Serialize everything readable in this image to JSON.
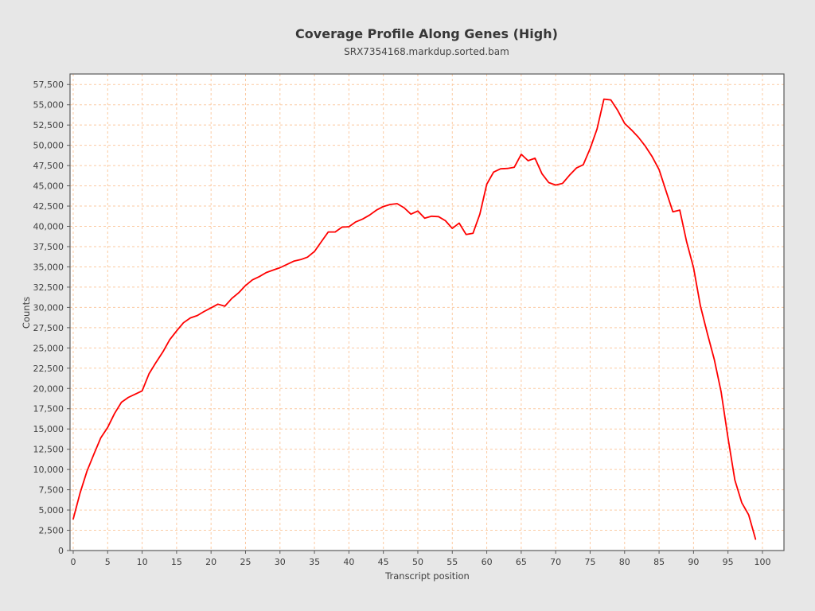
{
  "chart_data": {
    "type": "line",
    "title": "Coverage Profile Along Genes (High)",
    "subtitle": "SRX7354168.markdup.sorted.bam",
    "xlabel": "Transcript position",
    "ylabel": "Counts",
    "grid": true,
    "legend": "none",
    "xlim": [
      -0.46,
      103.12
    ],
    "ylim": [
      0,
      58800
    ],
    "x_ticks": [
      0,
      5,
      10,
      15,
      20,
      25,
      30,
      35,
      40,
      45,
      50,
      55,
      60,
      65,
      70,
      75,
      80,
      85,
      90,
      95,
      100
    ],
    "y_ticks": [
      0,
      2500,
      5000,
      7500,
      10000,
      12500,
      15000,
      17500,
      20000,
      22500,
      25000,
      27500,
      30000,
      32500,
      35000,
      37500,
      40000,
      42500,
      45000,
      47500,
      50000,
      52500,
      55000,
      57500
    ],
    "series": [
      {
        "name": "coverage",
        "color": "#ff0000",
        "x": [
          0,
          1,
          2,
          3,
          4,
          5,
          6,
          7,
          8,
          9,
          10,
          11,
          12,
          13,
          14,
          15,
          16,
          17,
          18,
          19,
          20,
          21,
          22,
          23,
          24,
          25,
          26,
          27,
          28,
          29,
          30,
          31,
          32,
          33,
          34,
          35,
          36,
          37,
          38,
          39,
          40,
          41,
          42,
          43,
          44,
          45,
          46,
          47,
          48,
          49,
          50,
          51,
          52,
          53,
          54,
          55,
          56,
          57,
          58,
          59,
          60,
          61,
          62,
          63,
          64,
          65,
          66,
          67,
          68,
          69,
          70,
          71,
          72,
          73,
          74,
          75,
          76,
          77,
          78,
          79,
          80,
          81,
          82,
          83,
          84,
          85,
          86,
          87,
          88,
          89,
          90,
          91,
          92,
          93,
          94,
          95,
          96,
          97,
          98,
          99
        ],
        "values": [
          3900,
          7100,
          9800,
          11900,
          13900,
          15200,
          16900,
          18300,
          18900,
          19300,
          19700,
          21800,
          23200,
          24500,
          26000,
          27100,
          28100,
          28700,
          29000,
          29500,
          29950,
          30400,
          30150,
          31100,
          31800,
          32700,
          33400,
          33800,
          34300,
          34600,
          34900,
          35300,
          35700,
          35900,
          36200,
          36900,
          38100,
          39300,
          39300,
          39900,
          39950,
          40550,
          40900,
          41400,
          42000,
          42450,
          42700,
          42800,
          42300,
          41500,
          41900,
          41000,
          41250,
          41200,
          40700,
          39750,
          40400,
          39000,
          39150,
          41500,
          45200,
          46700,
          47100,
          47150,
          47300,
          48900,
          48100,
          48400,
          46500,
          45400,
          45100,
          45300,
          46300,
          47200,
          47600,
          49600,
          52000,
          55700,
          55600,
          54300,
          52700,
          51900,
          51000,
          49900,
          48600,
          47000,
          44400,
          41800,
          42000,
          38100,
          34900,
          30200,
          26800,
          23600,
          19600,
          13900,
          8700,
          5900,
          4400,
          1400
        ]
      }
    ],
    "colors": {
      "background": "#e7e7e7",
      "plot_background": "#ffffff",
      "grid": "#fbcaa2",
      "axis": "#5b5b5b",
      "text": "#3e3e3e",
      "line": "#ff0000"
    }
  }
}
